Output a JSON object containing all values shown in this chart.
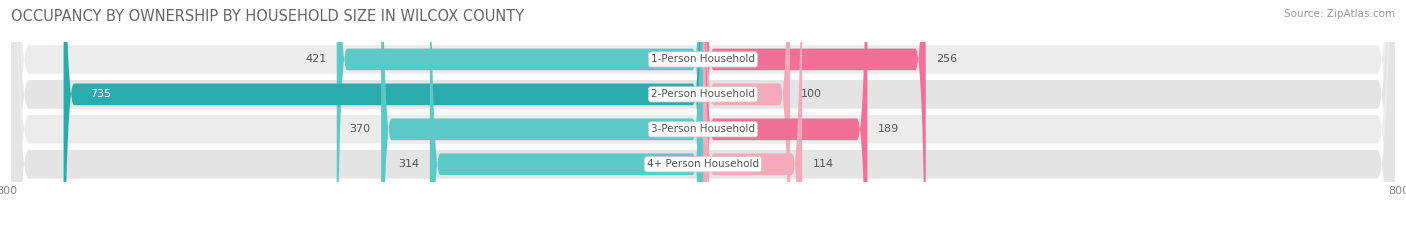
{
  "title": "OCCUPANCY BY OWNERSHIP BY HOUSEHOLD SIZE IN WILCOX COUNTY",
  "source": "Source: ZipAtlas.com",
  "categories": [
    "1-Person Household",
    "2-Person Household",
    "3-Person Household",
    "4+ Person Household"
  ],
  "owner_values": [
    421,
    735,
    370,
    314
  ],
  "renter_values": [
    256,
    100,
    189,
    114
  ],
  "owner_colors": [
    "#5DC8C8",
    "#2AACAC",
    "#5DC8C8",
    "#5DC8C8"
  ],
  "renter_colors": [
    "#F07098",
    "#F4AABB",
    "#F07098",
    "#F4AABB"
  ],
  "row_bg_color": "#ECECEC",
  "row_alt_bg_color": "#E4E4E4",
  "axis_max": 800,
  "axis_min": -800,
  "title_fontsize": 10.5,
  "label_fontsize": 7.5,
  "tick_fontsize": 8,
  "source_fontsize": 7.5,
  "value_fontsize": 8,
  "background_color": "#FFFFFF",
  "legend_owner_color": "#5DC8C8",
  "legend_renter_color": "#F07098"
}
